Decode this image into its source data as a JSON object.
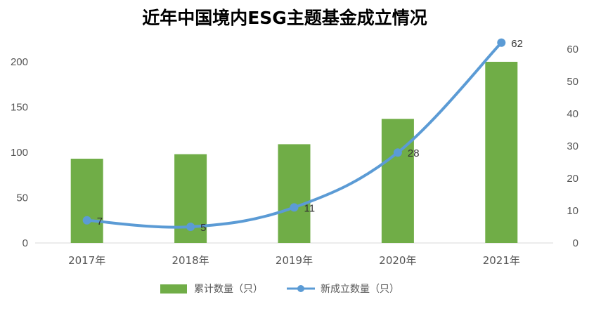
{
  "chart_data": {
    "type": "bar",
    "title": "近年中国境内ESG主题基金成立情况",
    "categories": [
      "2017年",
      "2018年",
      "2019年",
      "2020年",
      "2021年"
    ],
    "series": [
      {
        "name": "累计数量（只）",
        "type": "bar",
        "axis": "left",
        "color": "#70ad47",
        "values": [
          93,
          98,
          109,
          137,
          200
        ]
      },
      {
        "name": "新成立数量（只）",
        "type": "line",
        "axis": "right",
        "color": "#5b9bd5",
        "values": [
          7,
          5,
          11,
          28,
          62
        ]
      }
    ],
    "y_left": {
      "min": 0,
      "max": 200,
      "ticks": [
        0,
        50,
        100,
        150,
        200
      ]
    },
    "y_right": {
      "min": 0,
      "max": 60,
      "ticks": [
        0,
        10,
        20,
        30,
        40,
        50,
        60
      ]
    },
    "grid": false,
    "legend_position": "bottom"
  }
}
